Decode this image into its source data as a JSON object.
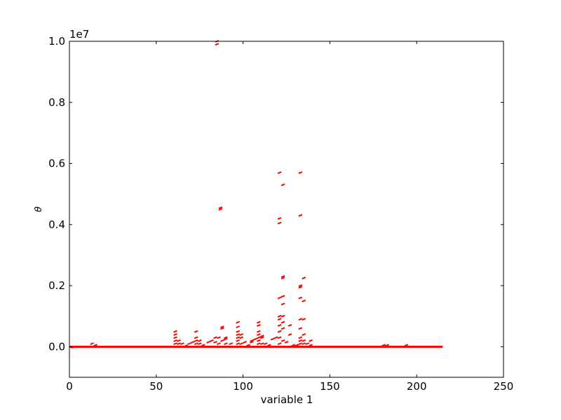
{
  "chart_data": {
    "type": "line",
    "title": "",
    "xlabel": "variable 1",
    "ylabel": "θ",
    "y_offset_label": "1e7",
    "xlim": [
      0,
      250
    ],
    "ylim": [
      -0.1,
      1.0
    ],
    "xticks": [
      0,
      50,
      100,
      150,
      200,
      250
    ],
    "yticks": [
      0.0,
      0.2,
      0.4,
      0.6,
      0.8,
      1.0
    ],
    "ytick_labels": [
      "0.0",
      "0.2",
      "0.4",
      "0.6",
      "0.8",
      "1.0"
    ],
    "grid": false,
    "color": "#ff0000",
    "baseline": {
      "x_start": 0,
      "x_end": 215,
      "y": 0.0
    },
    "points": [
      [
        2,
        -0.002
      ],
      [
        13,
        0.01
      ],
      [
        15,
        0.005
      ],
      [
        181,
        0.005
      ],
      [
        183,
        0.005
      ],
      [
        194,
        0.005
      ],
      [
        61,
        0.01
      ],
      [
        61,
        0.02
      ],
      [
        61,
        0.03
      ],
      [
        61,
        0.04
      ],
      [
        61,
        0.05
      ],
      [
        63,
        0.01
      ],
      [
        63,
        0.02
      ],
      [
        65,
        0.01
      ],
      [
        67,
        0.003
      ],
      [
        69,
        0.01
      ],
      [
        71,
        0.015
      ],
      [
        73,
        0.01
      ],
      [
        73,
        0.02
      ],
      [
        73,
        0.03
      ],
      [
        73,
        0.05
      ],
      [
        75,
        0.01
      ],
      [
        75,
        0.02
      ],
      [
        77,
        0.005
      ],
      [
        80,
        0.015
      ],
      [
        82,
        0.02
      ],
      [
        84,
        0.015
      ],
      [
        84,
        0.03
      ],
      [
        86,
        0.01
      ],
      [
        86,
        0.03
      ],
      [
        88,
        0.02
      ],
      [
        88,
        0.06
      ],
      [
        88,
        0.065
      ],
      [
        90,
        0.01
      ],
      [
        90,
        0.025
      ],
      [
        90,
        0.03
      ],
      [
        93,
        0.01
      ],
      [
        97,
        0.01
      ],
      [
        97,
        0.02
      ],
      [
        97,
        0.03
      ],
      [
        97,
        0.04
      ],
      [
        97,
        0.05
      ],
      [
        97,
        0.065
      ],
      [
        97,
        0.08
      ],
      [
        99,
        0.01
      ],
      [
        99,
        0.03
      ],
      [
        99,
        0.04
      ],
      [
        101,
        0.015
      ],
      [
        103,
        0.005
      ],
      [
        105,
        0.015
      ],
      [
        105,
        0.02
      ],
      [
        107,
        0.025
      ],
      [
        109,
        0.01
      ],
      [
        109,
        0.02
      ],
      [
        109,
        0.03
      ],
      [
        109,
        0.04
      ],
      [
        109,
        0.05
      ],
      [
        109,
        0.07
      ],
      [
        109,
        0.08
      ],
      [
        111,
        0.01
      ],
      [
        111,
        0.03
      ],
      [
        111,
        0.035
      ],
      [
        113,
        0.01
      ],
      [
        115,
        0.005
      ],
      [
        117,
        0.025
      ],
      [
        119,
        0.03
      ],
      [
        121,
        0.01
      ],
      [
        121,
        0.03
      ],
      [
        121,
        0.05
      ],
      [
        121,
        0.07
      ],
      [
        121,
        0.09
      ],
      [
        121,
        0.1
      ],
      [
        121,
        0.16
      ],
      [
        121,
        0.405
      ],
      [
        121,
        0.42
      ],
      [
        121,
        0.57
      ],
      [
        123,
        0.02
      ],
      [
        123,
        0.06
      ],
      [
        123,
        0.08
      ],
      [
        123,
        0.1
      ],
      [
        123,
        0.14
      ],
      [
        123,
        0.165
      ],
      [
        123,
        0.225
      ],
      [
        123,
        0.23
      ],
      [
        123,
        0.53
      ],
      [
        125,
        0.015
      ],
      [
        127,
        0.04
      ],
      [
        127,
        0.07
      ],
      [
        129,
        0.005
      ],
      [
        131,
        0.005
      ],
      [
        133,
        0.01
      ],
      [
        133,
        0.02
      ],
      [
        133,
        0.03
      ],
      [
        133,
        0.06
      ],
      [
        133,
        0.09
      ],
      [
        133,
        0.16
      ],
      [
        133,
        0.195
      ],
      [
        133,
        0.2
      ],
      [
        133,
        0.43
      ],
      [
        133,
        0.57
      ],
      [
        135,
        0.01
      ],
      [
        135,
        0.02
      ],
      [
        135,
        0.04
      ],
      [
        135,
        0.09
      ],
      [
        135,
        0.15
      ],
      [
        135,
        0.225
      ],
      [
        137,
        0.01
      ],
      [
        139,
        0.005
      ],
      [
        139,
        0.02
      ],
      [
        85,
        0.99
      ],
      [
        85,
        1.0
      ],
      [
        87,
        0.45
      ],
      [
        87,
        0.455
      ]
    ]
  }
}
